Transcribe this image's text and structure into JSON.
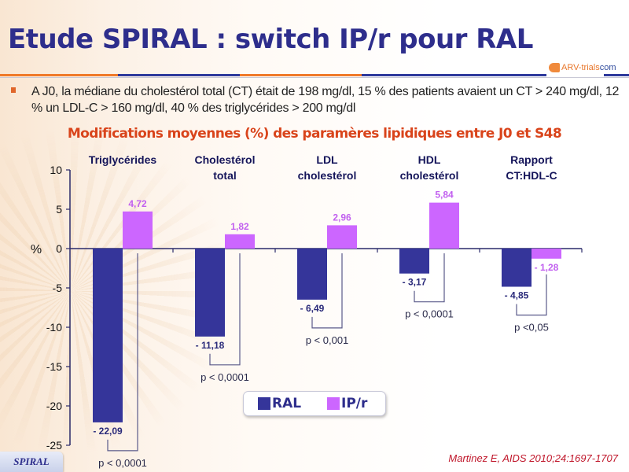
{
  "header": {
    "title": "Etude SPIRAL : switch IP/r pour RAL",
    "logo": {
      "text": "ARV-trials",
      "suffix": "com"
    }
  },
  "bullet": "A J0, la médiane du cholestérol total (CT) était de 198 mg/dl, 15 % des patients avaient un CT > 240 mg/dl, 12 % un LDL-C > 160 mg/dl, 40 % des triglycérides > 200 mg/dl",
  "subtitle": "Modifications moyennes (%) des paramères lipidiques entre J0 et S48",
  "colors": {
    "RAL": "#35359a",
    "IP/r": "#cc66ff",
    "title": "#2e2e8c",
    "subtitle": "#d9441b",
    "citation": "#c0172b"
  },
  "chart_data": {
    "type": "bar",
    "title": "Modifications moyennes (%) des paramères lipidiques entre J0 et S48",
    "xlabel": "",
    "ylabel": "%",
    "ylim": [
      -25,
      10
    ],
    "yticks": [
      10,
      5,
      0,
      -5,
      -10,
      -15,
      -20,
      -25
    ],
    "grid": false,
    "legend_position": "bottom-center",
    "categories": [
      [
        "Triglycérides"
      ],
      [
        "Cholestérol",
        "total"
      ],
      [
        "LDL",
        "cholestérol"
      ],
      [
        "HDL",
        "cholestérol"
      ],
      [
        "Rapport",
        "CT:HDL-C"
      ]
    ],
    "series": [
      {
        "name": "RAL",
        "values": [
          -22.09,
          -11.18,
          -6.49,
          -3.17,
          -4.85
        ],
        "labels": [
          "- 22,09",
          "- 11,18",
          "- 6,49",
          "- 3,17",
          "- 4,85"
        ]
      },
      {
        "name": "IP/r",
        "values": [
          4.72,
          1.82,
          2.96,
          5.84,
          -1.28
        ],
        "labels": [
          "4,72",
          "1,82",
          "2,96",
          "5,84",
          "- 1,28"
        ]
      }
    ],
    "p_values": [
      "p < 0,0001",
      "p < 0,0001",
      "p < 0,001",
      "p < 0,0001",
      "p <0,05"
    ]
  },
  "legend": [
    {
      "name": "RAL"
    },
    {
      "name": "IP/r"
    }
  ],
  "footer": {
    "badge": "SPIRAL",
    "citation": "Martinez E, AIDS 2010;24:1697-1707"
  }
}
